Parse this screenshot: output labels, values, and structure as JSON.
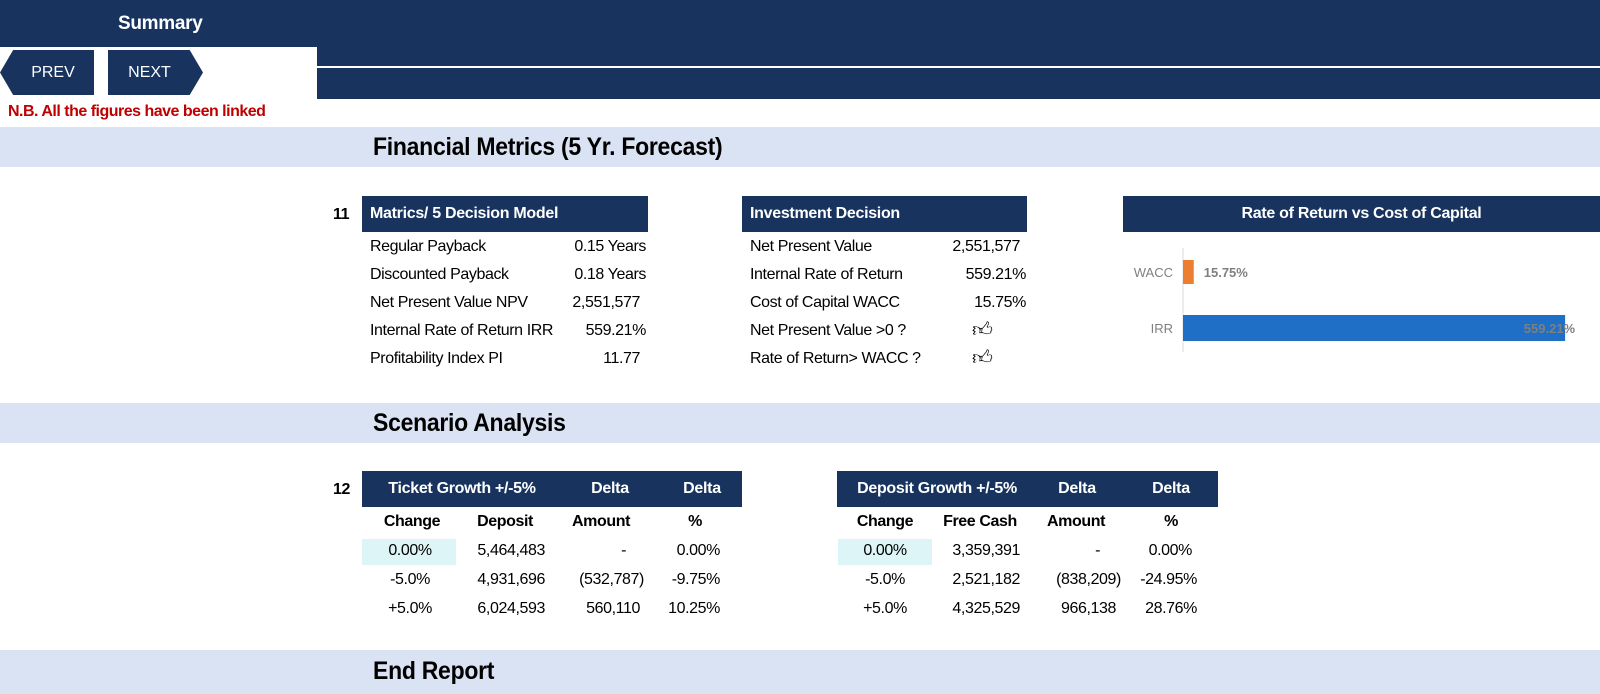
{
  "header": {
    "title": "Summary",
    "prev_label": "PREV",
    "next_label": "NEXT",
    "note": "N.B. All the figures have been linked"
  },
  "sections": {
    "financial_metrics": "Financial Metrics (5 Yr. Forecast)",
    "scenario_analysis": "Scenario Analysis",
    "end_report": "End Report"
  },
  "metrics_table": {
    "index": "11",
    "header": "Matrics/ 5 Decision Model",
    "rows": [
      {
        "label": "Regular Payback",
        "value": "0.15 Years"
      },
      {
        "label": "Discounted Payback",
        "value": "0.18 Years"
      },
      {
        "label": "Net Present Value NPV",
        "value": "2,551,577"
      },
      {
        "label": "Internal Rate of Return IRR",
        "value": "559.21%"
      },
      {
        "label": "Profitability Index PI",
        "value": "11.77"
      }
    ]
  },
  "investment_decision": {
    "header": "Investment Decision",
    "rows": [
      {
        "label": "Net Present Value",
        "value": "2,551,577"
      },
      {
        "label": "Internal Rate of Return",
        "value": "559.21%"
      },
      {
        "label": "Cost of Capital WACC",
        "value": "15.75%"
      },
      {
        "label": "Net Present Value >0 ?",
        "icon": "thumbs-up-icon"
      },
      {
        "label": "Rate of Return> WACC ?",
        "icon": "thumbs-up-icon"
      }
    ]
  },
  "chart_data": {
    "type": "bar",
    "orientation": "horizontal",
    "title": "Rate of Return vs Cost of Capital",
    "categories": [
      "WACC",
      "IRR"
    ],
    "values": [
      15.75,
      559.21
    ],
    "labels": [
      "15.75%",
      "559.21%"
    ],
    "colors": [
      "#ed7d31",
      "#1f6fc6"
    ],
    "xlim": [
      0,
      600
    ],
    "grid": false,
    "legend": "none"
  },
  "ticket_table": {
    "index": "12",
    "headers": [
      "Ticket Growth +/-5%",
      "Delta",
      "Delta"
    ],
    "subheaders": [
      "Change",
      "Deposit",
      "Amount",
      "%"
    ],
    "rows": [
      [
        "0.00%",
        "5,464,483",
        "-",
        "0.00%"
      ],
      [
        "-5.0%",
        "4,931,696",
        "(532,787)",
        "-9.75%"
      ],
      [
        "+5.0%",
        "6,024,593",
        "560,110",
        "10.25%"
      ]
    ]
  },
  "deposit_table": {
    "headers": [
      "Deposit Growth +/-5%",
      "Delta",
      "Delta"
    ],
    "subheaders": [
      "Change",
      "Free Cash",
      "Amount",
      "%"
    ],
    "rows": [
      [
        "0.00%",
        "3,359,391",
        "-",
        "0.00%"
      ],
      [
        "-5.0%",
        "2,521,182",
        "(838,209)",
        "-24.95%"
      ],
      [
        "+5.0%",
        "4,325,529",
        "966,138",
        "28.76%"
      ]
    ]
  },
  "colors": {
    "navy": "#17335e",
    "band": "#dae3f3",
    "note_red": "#c00000",
    "highlight": "#ddf5f7"
  }
}
